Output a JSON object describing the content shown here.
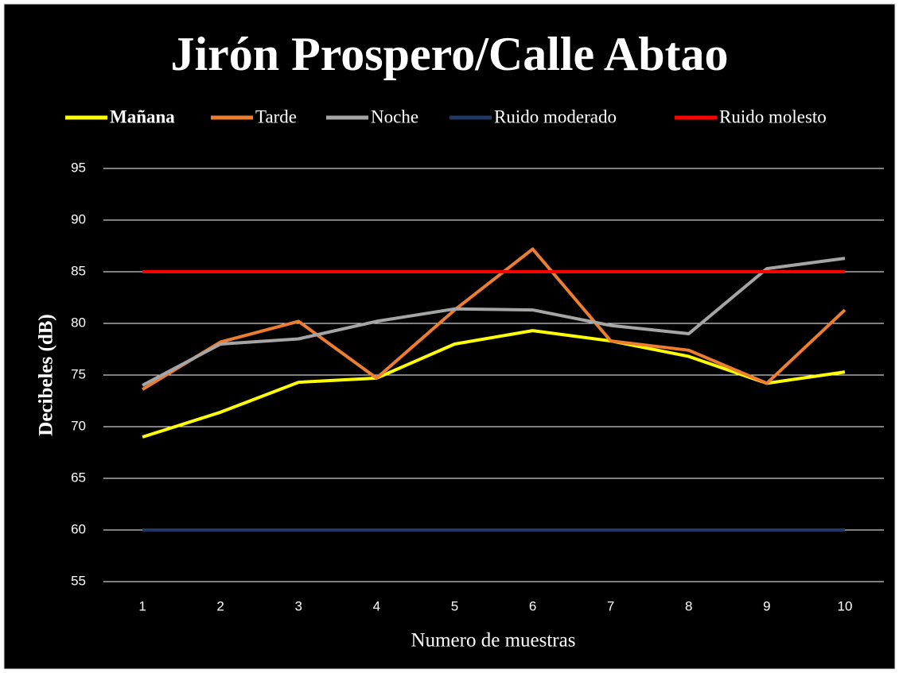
{
  "chart_data": {
    "type": "line",
    "title": "Jirón Prospero/Calle Abtao",
    "x_label": "Numero de muestras",
    "y_label": "Decibeles (dB)",
    "categories": [
      "1",
      "2",
      "3",
      "4",
      "5",
      "6",
      "7",
      "8",
      "9",
      "10"
    ],
    "series": [
      {
        "name": "Mañana",
        "color": "#ffff00",
        "values": [
          69.0,
          71.4,
          74.3,
          74.7,
          78.0,
          79.3,
          78.3,
          76.8,
          74.2,
          75.3
        ]
      },
      {
        "name": "Tarde",
        "color": "#ed7d31",
        "values": [
          73.6,
          78.2,
          80.2,
          74.7,
          81.3,
          87.2,
          78.3,
          77.4,
          74.2,
          81.3
        ]
      },
      {
        "name": "Noche",
        "color": "#a5a5a5",
        "values": [
          74.0,
          78.0,
          78.5,
          80.2,
          81.4,
          81.3,
          79.8,
          79.0,
          85.3,
          86.3
        ]
      },
      {
        "name": "Ruido moderado",
        "color": "#1f3864",
        "values": [
          60,
          60,
          60,
          60,
          60,
          60,
          60,
          60,
          60,
          60
        ]
      },
      {
        "name": "Ruido molesto",
        "color": "#ff0000",
        "values": [
          85,
          85,
          85,
          85,
          85,
          85,
          85,
          85,
          85,
          85
        ]
      }
    ],
    "ylim": [
      55,
      95
    ],
    "yticks": [
      55,
      60,
      65,
      70,
      75,
      80,
      85,
      90,
      95
    ],
    "grid": true,
    "legend": "top"
  }
}
